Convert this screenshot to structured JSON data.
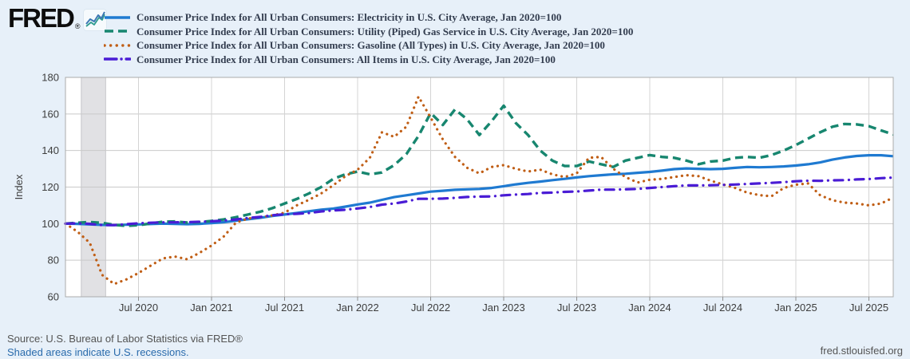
{
  "header": {
    "logo_text": "FRED",
    "logo_reg": "®",
    "legend": [
      {
        "label": "Consumer Price Index for All Urban Consumers: Electricity in U.S. City Average, Jan 2020=100"
      },
      {
        "label": "Consumer Price Index for All Urban Consumers: Utility (Piped) Gas Service in U.S. City Average, Jan 2020=100"
      },
      {
        "label": "Consumer Price Index for All Urban Consumers: Gasoline (All Types) in U.S. City Average, Jan 2020=100"
      },
      {
        "label": "Consumer Price Index for All Urban Consumers: All Items in U.S. City Average, Jan 2020=100"
      }
    ]
  },
  "chart_data": {
    "type": "line",
    "title": "",
    "xlabel": "",
    "ylabel": "Index",
    "ylim": [
      60,
      180
    ],
    "yticks": [
      60,
      80,
      100,
      120,
      140,
      160,
      180
    ],
    "grid": true,
    "legend_position": "top-left",
    "x_range": {
      "start": "2020-01",
      "end": "2025-09",
      "months_total": 68
    },
    "xticks": [
      {
        "m": 6,
        "label": "Jul 2020"
      },
      {
        "m": 12,
        "label": "Jan 2021"
      },
      {
        "m": 18,
        "label": "Jul 2021"
      },
      {
        "m": 24,
        "label": "Jan 2022"
      },
      {
        "m": 30,
        "label": "Jul 2022"
      },
      {
        "m": 36,
        "label": "Jan 2023"
      },
      {
        "m": 42,
        "label": "Jul 2023"
      },
      {
        "m": 48,
        "label": "Jan 2024"
      },
      {
        "m": 54,
        "label": "Jul 2024"
      },
      {
        "m": 60,
        "label": "Jan 2025"
      },
      {
        "m": 66,
        "label": "Jul 2025"
      }
    ],
    "recession_shading": {
      "note": "U.S. recession Feb 2020 - Apr 2020",
      "start_m": 1.3,
      "end_m": 3.3
    },
    "series": [
      {
        "id": "electricity",
        "name": "Electricity in U.S. City Average",
        "color": "#1f7ad1",
        "style": "solid",
        "dash": "",
        "legend_dash": "",
        "linecap": "butt",
        "width": 3.2,
        "values": [
          100,
          99.9,
          99.6,
          99.3,
          99.2,
          99.4,
          99.6,
          99.8,
          100,
          99.9,
          99.7,
          99.9,
          100.3,
          100.8,
          101.6,
          102.4,
          103.2,
          104.2,
          105,
          105.8,
          106.8,
          107.6,
          108.2,
          109.3,
          110.5,
          111.5,
          113,
          114.5,
          115.5,
          116.5,
          117.5,
          118,
          118.5,
          118.8,
          119,
          119.5,
          120.5,
          121.5,
          122.3,
          123,
          123.8,
          124.5,
          125.3,
          126,
          126.5,
          127,
          127.3,
          127.8,
          128.3,
          129,
          129.8,
          130.2,
          130,
          129.8,
          130,
          130.5,
          131,
          130.8,
          131,
          131.3,
          131.8,
          132.5,
          133.5,
          135,
          136.2,
          137,
          137.4,
          137.4,
          136.9
        ]
      },
      {
        "id": "utility-gas",
        "name": "Utility (Piped) Gas Service in U.S. City Average",
        "color": "#17866f",
        "style": "dashed",
        "dash": "10 6",
        "legend_dash": "11 6",
        "linecap": "butt",
        "width": 3.4,
        "values": [
          100,
          100.5,
          100.9,
          100.4,
          99.3,
          98.8,
          99.2,
          100.1,
          101,
          101.2,
          100.6,
          100.8,
          101.5,
          102.3,
          103.5,
          105,
          106.5,
          108.5,
          111,
          113.5,
          116.5,
          120,
          124.5,
          127,
          128.5,
          127,
          128,
          132,
          138,
          148,
          160.5,
          154,
          162.5,
          157,
          148.5,
          156,
          164.5,
          155,
          148.5,
          140,
          134.5,
          131.5,
          131.5,
          134,
          132.5,
          131,
          134.5,
          136,
          137.5,
          136.5,
          136,
          134.5,
          132.5,
          134,
          134.5,
          136,
          136.5,
          136,
          137.5,
          140,
          143,
          146.5,
          150,
          153,
          154.5,
          154.3,
          153.3,
          151,
          148.8
        ]
      },
      {
        "id": "gasoline",
        "name": "Gasoline (All Types) in U.S. City Average",
        "color": "#c05e15",
        "style": "dotted",
        "dash": "0.1 6.8",
        "legend_dash": "0.1 7.5",
        "linecap": "round",
        "width": 3.2,
        "values": [
          100,
          95.5,
          89.5,
          72,
          67,
          69.5,
          73,
          77,
          81,
          82,
          80.5,
          84,
          88,
          93,
          100.5,
          102.8,
          103.5,
          104.5,
          106,
          110,
          113,
          116.5,
          121,
          126,
          129.5,
          136,
          150,
          147.5,
          153,
          169.5,
          158,
          146,
          136.5,
          130.5,
          127.5,
          131,
          132,
          130,
          128.5,
          129.5,
          127,
          125.5,
          127.5,
          136,
          136.5,
          130,
          125.5,
          122.5,
          124,
          124.5,
          125.5,
          126.5,
          126,
          123.5,
          121.5,
          119.5,
          117,
          115.6,
          115,
          119.5,
          121.3,
          122,
          115.5,
          112.8,
          111.5,
          111,
          110,
          111,
          114.3
        ]
      },
      {
        "id": "all-items",
        "name": "All Items in U.S. City Average",
        "color": "#4a1cd5",
        "style": "dashdot",
        "dash": "11 7.5 0.1 7.5",
        "legend_dash": "15 6 0.1 6",
        "linecap": "round",
        "width": 3.2,
        "values": [
          100,
          100.2,
          99.9,
          99.2,
          99.2,
          99.7,
          100.2,
          100.5,
          100.7,
          100.7,
          100.8,
          101,
          101.3,
          101.7,
          102.3,
          103.1,
          103.7,
          104.6,
          105.1,
          105.4,
          105.8,
          106.7,
          107.2,
          107.6,
          108.3,
          109.1,
          110.4,
          111,
          112.1,
          113.6,
          113.6,
          113.7,
          114.1,
          114.6,
          114.8,
          114.9,
          115.5,
          115.9,
          116.2,
          116.8,
          117,
          117.4,
          117.6,
          118.1,
          118.6,
          118.6,
          118.8,
          119,
          119.5,
          120,
          120.5,
          120.9,
          120.9,
          121,
          121.2,
          121.4,
          121.7,
          122,
          122.3,
          122.7,
          123.2,
          123.5,
          123.4,
          123.7,
          123.8,
          124.2,
          124.4,
          124.9,
          125.2
        ]
      }
    ]
  },
  "theme": {
    "page_bg": "#e7f0f9",
    "plot_bg": "#ffffff",
    "grid_h": "#c9c9c9",
    "grid_v": "#d4d4d4",
    "frame": "#ababab",
    "tick": "#8f8f8f",
    "recession_fill": "#e1e1e4",
    "recession_edge": "#c6c6ca",
    "axis_text": "#3d3d3d",
    "legend_text": "#333d4f",
    "footer_text": "#545454",
    "link_text": "#2a6bac"
  },
  "footer": {
    "source": "Source: U.S. Bureau of Labor Statistics via FRED®",
    "recession_note": "Shaded areas indicate U.S. recessions.",
    "url": "fred.stlouisfed.org"
  }
}
